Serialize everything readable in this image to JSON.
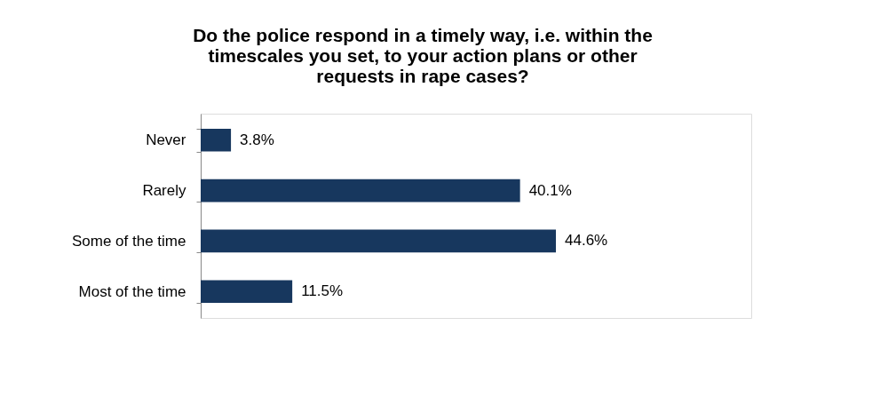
{
  "chart_data": {
    "type": "bar",
    "orientation": "horizontal",
    "title": [
      "Do the police respond in a timely way, i.e. within the",
      "timescales you set, to your action plans or other",
      "requests in rape cases?"
    ],
    "categories": [
      "Never",
      "Rarely",
      "Some of the time",
      "Most of the time"
    ],
    "values": [
      3.8,
      40.1,
      44.6,
      11.5
    ],
    "value_labels": [
      "3.8%",
      "40.1%",
      "44.6%",
      "11.5%"
    ],
    "color": "#17375e"
  }
}
